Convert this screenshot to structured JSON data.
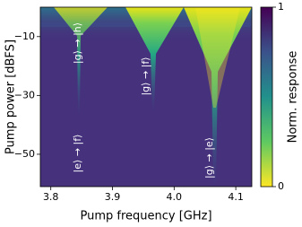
{
  "chart_data": {
    "type": "heatmap",
    "xlabel": "Pump frequency [GHz]",
    "ylabel": "Pump power [dBFS]",
    "xlim": [
      3.783,
      4.126
    ],
    "ylim": [
      -61,
      0
    ],
    "xticks": [
      3.8,
      3.9,
      {
        "value": 4,
        "label": "4.0"
      },
      4.1
    ],
    "yticks": [
      {
        "value": -10,
        "label": "−10"
      },
      {
        "value": -30,
        "label": "−30"
      },
      {
        "value": -50,
        "label": "−50"
      }
    ],
    "colorbar": {
      "label": "Norm. response",
      "lim": [
        0,
        1
      ],
      "ticks": [
        0,
        1
      ],
      "colors": [
        "#fde725",
        "#440154"
      ]
    },
    "annotations": [
      "|g⟩ → |h⟩",
      "|g⟩ → |f⟩",
      "|e⟩ → |f⟩",
      "|g⟩ → |e⟩"
    ]
  }
}
